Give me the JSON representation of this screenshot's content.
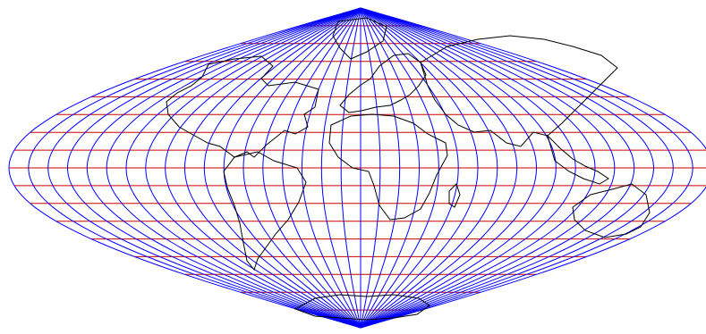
{
  "map": {
    "projection": "sinusoidal",
    "meridian_step_deg": 10,
    "parallel_step_deg": 10,
    "colors": {
      "background": "#ffffff",
      "meridians": "#0000ff",
      "parallels": "#cc0000",
      "coastlines": "#000000"
    }
  }
}
